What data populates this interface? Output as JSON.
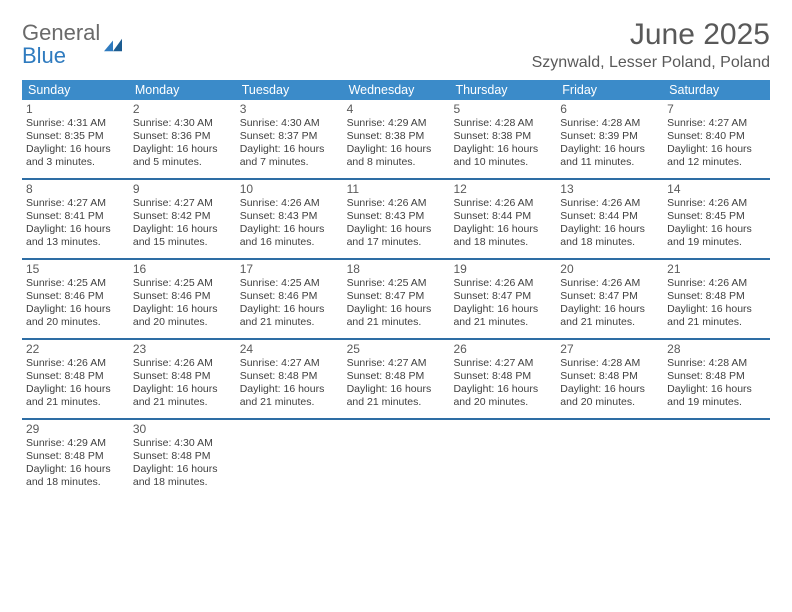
{
  "logo": {
    "general": "General",
    "blue": "Blue"
  },
  "title": "June 2025",
  "subtitle": "Szynwald, Lesser Poland, Poland",
  "colors": {
    "header_bg": "#3b8bc9",
    "week_divider": "#2e6da4",
    "title_color": "#595959",
    "text_color": "#404040"
  },
  "daysOfWeek": [
    "Sunday",
    "Monday",
    "Tuesday",
    "Wednesday",
    "Thursday",
    "Friday",
    "Saturday"
  ],
  "weeks": [
    [
      {
        "n": "1",
        "sr": "Sunrise: 4:31 AM",
        "ss": "Sunset: 8:35 PM",
        "dl": "Daylight: 16 hours and 3 minutes."
      },
      {
        "n": "2",
        "sr": "Sunrise: 4:30 AM",
        "ss": "Sunset: 8:36 PM",
        "dl": "Daylight: 16 hours and 5 minutes."
      },
      {
        "n": "3",
        "sr": "Sunrise: 4:30 AM",
        "ss": "Sunset: 8:37 PM",
        "dl": "Daylight: 16 hours and 7 minutes."
      },
      {
        "n": "4",
        "sr": "Sunrise: 4:29 AM",
        "ss": "Sunset: 8:38 PM",
        "dl": "Daylight: 16 hours and 8 minutes."
      },
      {
        "n": "5",
        "sr": "Sunrise: 4:28 AM",
        "ss": "Sunset: 8:38 PM",
        "dl": "Daylight: 16 hours and 10 minutes."
      },
      {
        "n": "6",
        "sr": "Sunrise: 4:28 AM",
        "ss": "Sunset: 8:39 PM",
        "dl": "Daylight: 16 hours and 11 minutes."
      },
      {
        "n": "7",
        "sr": "Sunrise: 4:27 AM",
        "ss": "Sunset: 8:40 PM",
        "dl": "Daylight: 16 hours and 12 minutes."
      }
    ],
    [
      {
        "n": "8",
        "sr": "Sunrise: 4:27 AM",
        "ss": "Sunset: 8:41 PM",
        "dl": "Daylight: 16 hours and 13 minutes."
      },
      {
        "n": "9",
        "sr": "Sunrise: 4:27 AM",
        "ss": "Sunset: 8:42 PM",
        "dl": "Daylight: 16 hours and 15 minutes."
      },
      {
        "n": "10",
        "sr": "Sunrise: 4:26 AM",
        "ss": "Sunset: 8:43 PM",
        "dl": "Daylight: 16 hours and 16 minutes."
      },
      {
        "n": "11",
        "sr": "Sunrise: 4:26 AM",
        "ss": "Sunset: 8:43 PM",
        "dl": "Daylight: 16 hours and 17 minutes."
      },
      {
        "n": "12",
        "sr": "Sunrise: 4:26 AM",
        "ss": "Sunset: 8:44 PM",
        "dl": "Daylight: 16 hours and 18 minutes."
      },
      {
        "n": "13",
        "sr": "Sunrise: 4:26 AM",
        "ss": "Sunset: 8:44 PM",
        "dl": "Daylight: 16 hours and 18 minutes."
      },
      {
        "n": "14",
        "sr": "Sunrise: 4:26 AM",
        "ss": "Sunset: 8:45 PM",
        "dl": "Daylight: 16 hours and 19 minutes."
      }
    ],
    [
      {
        "n": "15",
        "sr": "Sunrise: 4:25 AM",
        "ss": "Sunset: 8:46 PM",
        "dl": "Daylight: 16 hours and 20 minutes."
      },
      {
        "n": "16",
        "sr": "Sunrise: 4:25 AM",
        "ss": "Sunset: 8:46 PM",
        "dl": "Daylight: 16 hours and 20 minutes."
      },
      {
        "n": "17",
        "sr": "Sunrise: 4:25 AM",
        "ss": "Sunset: 8:46 PM",
        "dl": "Daylight: 16 hours and 21 minutes."
      },
      {
        "n": "18",
        "sr": "Sunrise: 4:25 AM",
        "ss": "Sunset: 8:47 PM",
        "dl": "Daylight: 16 hours and 21 minutes."
      },
      {
        "n": "19",
        "sr": "Sunrise: 4:26 AM",
        "ss": "Sunset: 8:47 PM",
        "dl": "Daylight: 16 hours and 21 minutes."
      },
      {
        "n": "20",
        "sr": "Sunrise: 4:26 AM",
        "ss": "Sunset: 8:47 PM",
        "dl": "Daylight: 16 hours and 21 minutes."
      },
      {
        "n": "21",
        "sr": "Sunrise: 4:26 AM",
        "ss": "Sunset: 8:48 PM",
        "dl": "Daylight: 16 hours and 21 minutes."
      }
    ],
    [
      {
        "n": "22",
        "sr": "Sunrise: 4:26 AM",
        "ss": "Sunset: 8:48 PM",
        "dl": "Daylight: 16 hours and 21 minutes."
      },
      {
        "n": "23",
        "sr": "Sunrise: 4:26 AM",
        "ss": "Sunset: 8:48 PM",
        "dl": "Daylight: 16 hours and 21 minutes."
      },
      {
        "n": "24",
        "sr": "Sunrise: 4:27 AM",
        "ss": "Sunset: 8:48 PM",
        "dl": "Daylight: 16 hours and 21 minutes."
      },
      {
        "n": "25",
        "sr": "Sunrise: 4:27 AM",
        "ss": "Sunset: 8:48 PM",
        "dl": "Daylight: 16 hours and 21 minutes."
      },
      {
        "n": "26",
        "sr": "Sunrise: 4:27 AM",
        "ss": "Sunset: 8:48 PM",
        "dl": "Daylight: 16 hours and 20 minutes."
      },
      {
        "n": "27",
        "sr": "Sunrise: 4:28 AM",
        "ss": "Sunset: 8:48 PM",
        "dl": "Daylight: 16 hours and 20 minutes."
      },
      {
        "n": "28",
        "sr": "Sunrise: 4:28 AM",
        "ss": "Sunset: 8:48 PM",
        "dl": "Daylight: 16 hours and 19 minutes."
      }
    ],
    [
      {
        "n": "29",
        "sr": "Sunrise: 4:29 AM",
        "ss": "Sunset: 8:48 PM",
        "dl": "Daylight: 16 hours and 18 minutes."
      },
      {
        "n": "30",
        "sr": "Sunrise: 4:30 AM",
        "ss": "Sunset: 8:48 PM",
        "dl": "Daylight: 16 hours and 18 minutes."
      },
      null,
      null,
      null,
      null,
      null
    ]
  ]
}
